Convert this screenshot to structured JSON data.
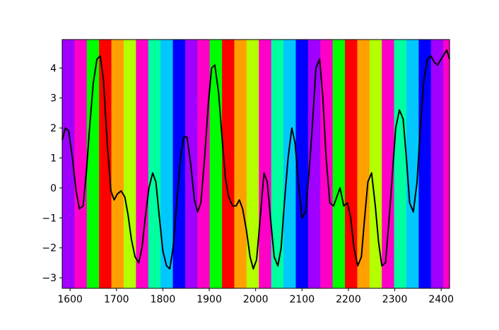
{
  "chart_data": {
    "type": "line",
    "title": "",
    "xlabel": "",
    "ylabel": "",
    "xlim": [
      1583,
      2418
    ],
    "ylim": [
      -3.35,
      4.95
    ],
    "grid": false,
    "x_ticks": [
      1600,
      1700,
      1800,
      1900,
      2000,
      2100,
      2200,
      2300,
      2400
    ],
    "x_tick_labels": [
      "1600",
      "1700",
      "1800",
      "1900",
      "2000",
      "2100",
      "2200",
      "2300",
      "2400"
    ],
    "y_ticks": [
      4,
      3,
      2,
      1,
      0,
      -1,
      -2,
      -3
    ],
    "y_tick_labels": [
      "4",
      "3",
      "2",
      "1",
      "0",
      "−1",
      "−2",
      "−3"
    ],
    "line_color": "#000000",
    "background_bands": {
      "start": 1583,
      "width": 26.5,
      "colors": [
        "#a000ff",
        "#ff00c8",
        "#00ff00",
        "#ff0000",
        "#ffa000",
        "#b4ff00",
        "#ff00c8",
        "#00ffa0",
        "#00c8ff",
        "#0000ff",
        "#a000ff",
        "#ff00c8",
        "#00ff00",
        "#ff0000",
        "#ffa000",
        "#b4ff00",
        "#ff00c8",
        "#00ffa0",
        "#00c8ff",
        "#0000ff",
        "#a000ff",
        "#ff00c8",
        "#00ff00",
        "#ff0000",
        "#ffa000",
        "#b4ff00",
        "#ff00c8",
        "#00ffa0",
        "#00c8ff",
        "#0000ff",
        "#a000ff",
        "#ff00c8",
        "#00ff00"
      ]
    },
    "series": [
      {
        "x": [
          1583,
          1590,
          1597,
          1605,
          1613,
          1620,
          1628,
          1635,
          1642,
          1650,
          1658,
          1665,
          1672,
          1680,
          1688,
          1695,
          1702,
          1710,
          1718,
          1725,
          1732,
          1740,
          1748,
          1755,
          1762,
          1770,
          1778,
          1785,
          1792,
          1800,
          1808,
          1815,
          1822,
          1830,
          1838,
          1845,
          1852,
          1860,
          1868,
          1875,
          1882,
          1890,
          1898,
          1905,
          1912,
          1920,
          1928,
          1935,
          1942,
          1950,
          1958,
          1965,
          1972,
          1980,
          1988,
          1995,
          2002,
          2010,
          2018,
          2025,
          2032,
          2040,
          2048,
          2055,
          2062,
          2070,
          2078,
          2085,
          2092,
          2100,
          2108,
          2115,
          2122,
          2130,
          2138,
          2145,
          2152,
          2160,
          2168,
          2175,
          2182,
          2190,
          2198,
          2205,
          2212,
          2220,
          2228,
          2235,
          2242,
          2250,
          2258,
          2265,
          2272,
          2280,
          2288,
          2295,
          2302,
          2310,
          2318,
          2325,
          2332,
          2340,
          2348,
          2355,
          2362,
          2370,
          2378,
          2385,
          2392,
          2400,
          2408,
          2412,
          2418
        ],
        "y": [
          1.6,
          2.0,
          1.9,
          1.0,
          -0.1,
          -0.7,
          -0.6,
          0.5,
          2.0,
          3.5,
          4.3,
          4.4,
          3.6,
          1.5,
          -0.1,
          -0.4,
          -0.2,
          -0.1,
          -0.3,
          -0.9,
          -1.7,
          -2.3,
          -2.5,
          -2.0,
          -1.0,
          0.0,
          0.5,
          0.2,
          -0.9,
          -2.1,
          -2.6,
          -2.7,
          -2.0,
          -0.5,
          1.0,
          1.7,
          1.7,
          0.8,
          -0.4,
          -0.8,
          -0.5,
          1.0,
          2.8,
          4.0,
          4.1,
          3.2,
          1.6,
          0.3,
          -0.3,
          -0.6,
          -0.6,
          -0.4,
          -0.7,
          -1.4,
          -2.3,
          -2.7,
          -2.4,
          -1.0,
          0.5,
          0.2,
          -1.0,
          -2.3,
          -2.6,
          -2.0,
          -0.5,
          1.0,
          2.0,
          1.5,
          0.2,
          -1.0,
          -0.8,
          0.5,
          2.0,
          4.0,
          4.3,
          3.0,
          1.0,
          -0.5,
          -0.6,
          -0.3,
          0.0,
          -0.6,
          -0.5,
          -1.0,
          -2.0,
          -2.6,
          -2.3,
          -1.0,
          0.2,
          0.5,
          -0.6,
          -1.8,
          -2.6,
          -2.5,
          -1.0,
          0.5,
          2.0,
          2.6,
          2.3,
          1.0,
          -0.5,
          -0.8,
          0.2,
          2.0,
          3.5,
          4.3,
          4.4,
          4.2,
          4.1,
          4.3,
          4.5,
          4.6,
          4.3
        ]
      }
    ]
  }
}
